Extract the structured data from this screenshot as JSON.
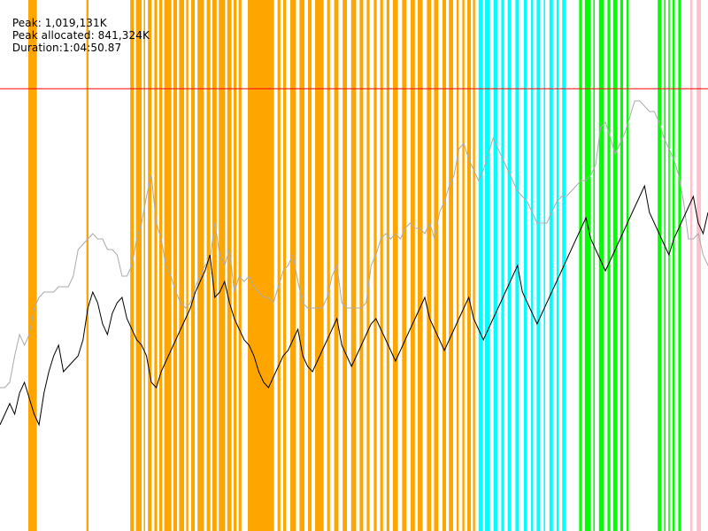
{
  "header": {
    "peak": "Peak: 1,019,131K",
    "peak_allocated": "Peak allocated: 841,324K",
    "duration": "Duration:1:04:50.87"
  },
  "colors": {
    "background": "#ffffff",
    "phase_orange": "#ffa500",
    "phase_cyan": "#00ffff",
    "phase_green": "#00ff00",
    "phase_pink": "#ffc0cb",
    "threshold_line": "#ff0000",
    "peak_series": "#aaaaaa",
    "main_series": "#000000"
  },
  "chart_data": {
    "type": "line",
    "title": "",
    "xlabel": "",
    "ylabel": "",
    "x_range": [
      0,
      1
    ],
    "y_range": [
      0,
      1
    ],
    "threshold": 0.833,
    "phases": [
      {
        "color": "orange",
        "ranges": [
          [
            0.04,
            0.052
          ],
          [
            0.122,
            0.125
          ],
          [
            0.184,
            0.189
          ],
          [
            0.192,
            0.2
          ],
          [
            0.203,
            0.205
          ],
          [
            0.209,
            0.214
          ],
          [
            0.218,
            0.222
          ],
          [
            0.225,
            0.229
          ],
          [
            0.232,
            0.242
          ],
          [
            0.245,
            0.25
          ],
          [
            0.253,
            0.26
          ],
          [
            0.263,
            0.266
          ],
          [
            0.27,
            0.275
          ],
          [
            0.279,
            0.288
          ],
          [
            0.292,
            0.297
          ],
          [
            0.3,
            0.306
          ],
          [
            0.309,
            0.318
          ],
          [
            0.321,
            0.327
          ],
          [
            0.33,
            0.334
          ],
          [
            0.337,
            0.341
          ],
          [
            0.35,
            0.387
          ],
          [
            0.392,
            0.396
          ],
          [
            0.4,
            0.404
          ],
          [
            0.41,
            0.418
          ],
          [
            0.423,
            0.43
          ],
          [
            0.435,
            0.44
          ],
          [
            0.445,
            0.457
          ],
          [
            0.462,
            0.466
          ],
          [
            0.472,
            0.478
          ],
          [
            0.484,
            0.49
          ],
          [
            0.496,
            0.503
          ],
          [
            0.508,
            0.513
          ],
          [
            0.518,
            0.522
          ],
          [
            0.528,
            0.532
          ],
          [
            0.537,
            0.541
          ],
          [
            0.546,
            0.55
          ],
          [
            0.555,
            0.562
          ],
          [
            0.568,
            0.574
          ],
          [
            0.58,
            0.586
          ],
          [
            0.59,
            0.597
          ],
          [
            0.603,
            0.609
          ],
          [
            0.613,
            0.619
          ],
          [
            0.625,
            0.63
          ],
          [
            0.634,
            0.64
          ],
          [
            0.645,
            0.648
          ],
          [
            0.653,
            0.656
          ],
          [
            0.66,
            0.665
          ],
          [
            0.668,
            0.671
          ]
        ]
      },
      {
        "color": "cyan",
        "ranges": [
          [
            0.676,
            0.682
          ],
          [
            0.685,
            0.692
          ],
          [
            0.697,
            0.703
          ],
          [
            0.708,
            0.712
          ],
          [
            0.717,
            0.722
          ],
          [
            0.728,
            0.733
          ],
          [
            0.74,
            0.744
          ],
          [
            0.75,
            0.753
          ],
          [
            0.758,
            0.763
          ],
          [
            0.768,
            0.77
          ],
          [
            0.776,
            0.781
          ],
          [
            0.786,
            0.789
          ],
          [
            0.794,
            0.799
          ]
        ]
      },
      {
        "color": "green",
        "ranges": [
          [
            0.818,
            0.822
          ],
          [
            0.826,
            0.834
          ],
          [
            0.838,
            0.84
          ],
          [
            0.846,
            0.853
          ],
          [
            0.858,
            0.862
          ],
          [
            0.866,
            0.872
          ],
          [
            0.876,
            0.88
          ],
          [
            0.885,
            0.888
          ],
          [
            0.929,
            0.934
          ],
          [
            0.938,
            0.94
          ],
          [
            0.944,
            0.946
          ],
          [
            0.95,
            0.953
          ],
          [
            0.958,
            0.962
          ]
        ]
      },
      {
        "color": "pink",
        "ranges": [
          [
            0.975,
            0.978
          ],
          [
            0.984,
            0.99
          ]
        ]
      }
    ],
    "series": [
      {
        "color": "#aaaaaa",
        "values": [
          0.27,
          0.27,
          0.28,
          0.33,
          0.37,
          0.35,
          0.37,
          0.42,
          0.44,
          0.45,
          0.45,
          0.45,
          0.46,
          0.46,
          0.46,
          0.48,
          0.53,
          0.54,
          0.55,
          0.56,
          0.55,
          0.55,
          0.53,
          0.53,
          0.52,
          0.48,
          0.48,
          0.5,
          0.55,
          0.58,
          0.63,
          0.67,
          0.58,
          0.55,
          0.5,
          0.48,
          0.45,
          0.43,
          0.42,
          0.43,
          0.46,
          0.48,
          0.5,
          0.51,
          0.58,
          0.52,
          0.5,
          0.53,
          0.45,
          0.48,
          0.47,
          0.48,
          0.46,
          0.45,
          0.44,
          0.44,
          0.43,
          0.46,
          0.49,
          0.5,
          0.52,
          0.47,
          0.43,
          0.42,
          0.42,
          0.42,
          0.42,
          0.44,
          0.48,
          0.5,
          0.43,
          0.42,
          0.42,
          0.42,
          0.42,
          0.43,
          0.5,
          0.52,
          0.55,
          0.56,
          0.55,
          0.56,
          0.55,
          0.57,
          0.58,
          0.57,
          0.57,
          0.56,
          0.58,
          0.55,
          0.6,
          0.62,
          0.65,
          0.67,
          0.72,
          0.73,
          0.7,
          0.68,
          0.66,
          0.68,
          0.71,
          0.74,
          0.72,
          0.7,
          0.68,
          0.66,
          0.64,
          0.63,
          0.62,
          0.6,
          0.58,
          0.58,
          0.58,
          0.6,
          0.62,
          0.63,
          0.63,
          0.64,
          0.65,
          0.66,
          0.66,
          0.67,
          0.69,
          0.76,
          0.77,
          0.74,
          0.71,
          0.73,
          0.75,
          0.78,
          0.81,
          0.81,
          0.8,
          0.79,
          0.79,
          0.77,
          0.74,
          0.72,
          0.7,
          0.67,
          0.62,
          0.55,
          0.55,
          0.56,
          0.52,
          0.5
        ]
      },
      {
        "color": "#000000",
        "values": [
          0.2,
          0.22,
          0.24,
          0.22,
          0.26,
          0.28,
          0.25,
          0.22,
          0.2,
          0.26,
          0.3,
          0.33,
          0.35,
          0.3,
          0.31,
          0.32,
          0.33,
          0.36,
          0.42,
          0.45,
          0.43,
          0.39,
          0.37,
          0.41,
          0.43,
          0.44,
          0.4,
          0.38,
          0.36,
          0.35,
          0.33,
          0.28,
          0.27,
          0.3,
          0.32,
          0.34,
          0.36,
          0.38,
          0.4,
          0.42,
          0.45,
          0.47,
          0.49,
          0.52,
          0.44,
          0.45,
          0.47,
          0.43,
          0.4,
          0.38,
          0.36,
          0.35,
          0.33,
          0.3,
          0.28,
          0.27,
          0.29,
          0.31,
          0.33,
          0.34,
          0.36,
          0.38,
          0.33,
          0.31,
          0.3,
          0.32,
          0.34,
          0.36,
          0.38,
          0.4,
          0.35,
          0.33,
          0.31,
          0.33,
          0.35,
          0.37,
          0.39,
          0.4,
          0.38,
          0.36,
          0.34,
          0.32,
          0.34,
          0.36,
          0.38,
          0.4,
          0.42,
          0.44,
          0.4,
          0.38,
          0.36,
          0.34,
          0.36,
          0.38,
          0.4,
          0.42,
          0.44,
          0.4,
          0.38,
          0.36,
          0.38,
          0.4,
          0.42,
          0.44,
          0.46,
          0.48,
          0.5,
          0.45,
          0.43,
          0.41,
          0.39,
          0.41,
          0.43,
          0.45,
          0.47,
          0.49,
          0.51,
          0.53,
          0.55,
          0.57,
          0.59,
          0.55,
          0.53,
          0.51,
          0.49,
          0.51,
          0.53,
          0.55,
          0.57,
          0.59,
          0.61,
          0.63,
          0.65,
          0.6,
          0.58,
          0.56,
          0.54,
          0.52,
          0.55,
          0.57,
          0.59,
          0.61,
          0.63,
          0.58,
          0.56,
          0.6
        ]
      }
    ]
  }
}
